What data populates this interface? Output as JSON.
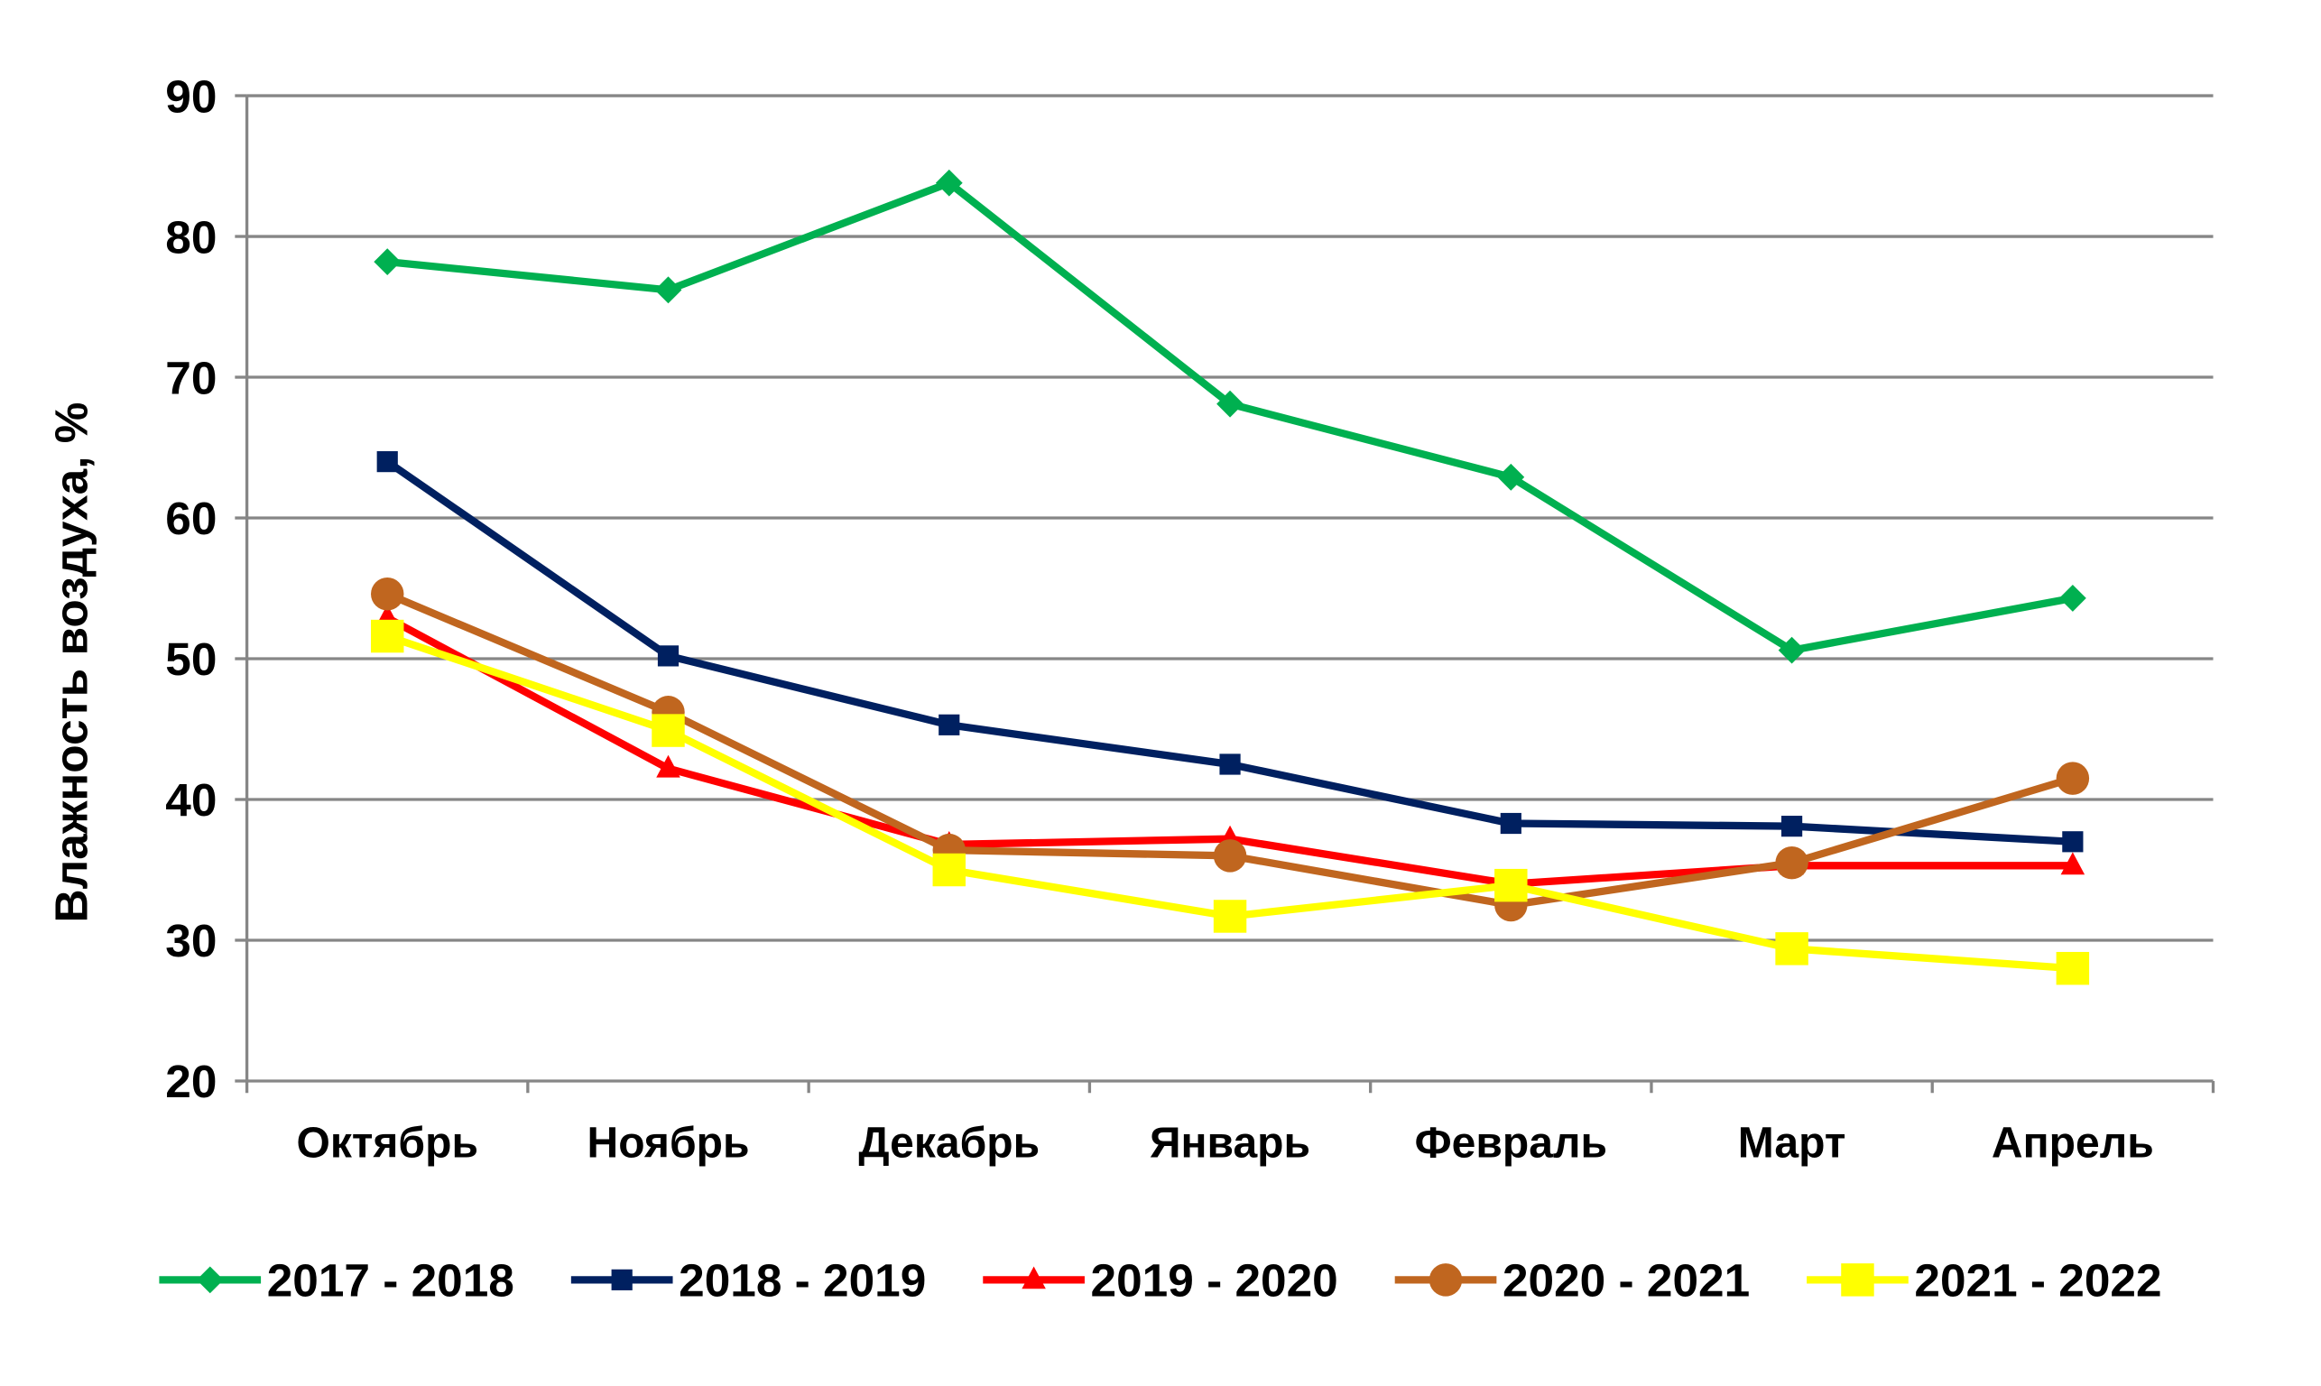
{
  "chart_data": {
    "type": "line",
    "y_label": "Влажность воздуха, %",
    "categories": [
      "Октябрь",
      "Ноябрь",
      "Декабрь",
      "Январь",
      "Февраль",
      "Март",
      "Апрель"
    ],
    "series": [
      {
        "name": "2017 - 2018",
        "color": "#00b050",
        "marker": "diamond",
        "values": [
          78.2,
          76.2,
          83.8,
          68.1,
          62.9,
          50.6,
          54.3
        ]
      },
      {
        "name": "2018 - 2019",
        "color": "#002060",
        "marker": "square",
        "values": [
          64.0,
          50.2,
          45.3,
          42.5,
          38.3,
          38.1,
          37.0
        ]
      },
      {
        "name": "2019 - 2020",
        "color": "#ff0000",
        "marker": "triangle",
        "values": [
          52.9,
          42.2,
          36.8,
          37.2,
          34.0,
          35.3,
          35.3
        ]
      },
      {
        "name": "2020 - 2021",
        "color": "#c0661f",
        "marker": "circle",
        "values": [
          54.6,
          46.2,
          36.4,
          36.0,
          32.5,
          35.5,
          41.5
        ]
      },
      {
        "name": "2021 - 2022",
        "color": "#ffff00",
        "marker": "bigsquare",
        "values": [
          51.6,
          44.9,
          35.0,
          31.7,
          33.9,
          29.4,
          28.0
        ]
      }
    ],
    "ylim": [
      20,
      90
    ],
    "yticks": [
      20,
      30,
      40,
      50,
      60,
      70,
      80,
      90
    ],
    "grid": true,
    "legend": "bottom"
  }
}
